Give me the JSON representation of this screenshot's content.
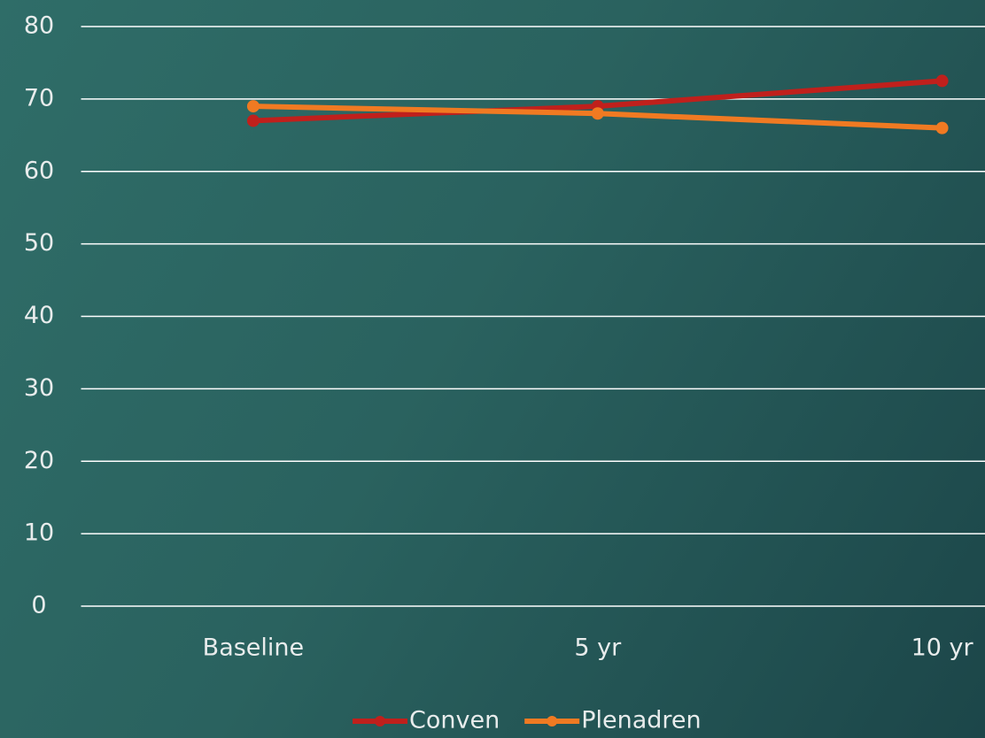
{
  "chart_data": {
    "type": "line",
    "categories": [
      "Baseline",
      "5 yr",
      "10 yr"
    ],
    "series": [
      {
        "name": "Conven",
        "color": "#c0201c",
        "values": [
          67,
          69,
          72.5
        ]
      },
      {
        "name": "Plenadren",
        "color": "#f07a22",
        "values": [
          69,
          68,
          66
        ]
      }
    ],
    "ylim": [
      0,
      80
    ],
    "yticks": [
      0,
      10,
      20,
      30,
      40,
      50,
      60,
      70,
      80
    ],
    "grid": true,
    "legend": "bottom"
  }
}
